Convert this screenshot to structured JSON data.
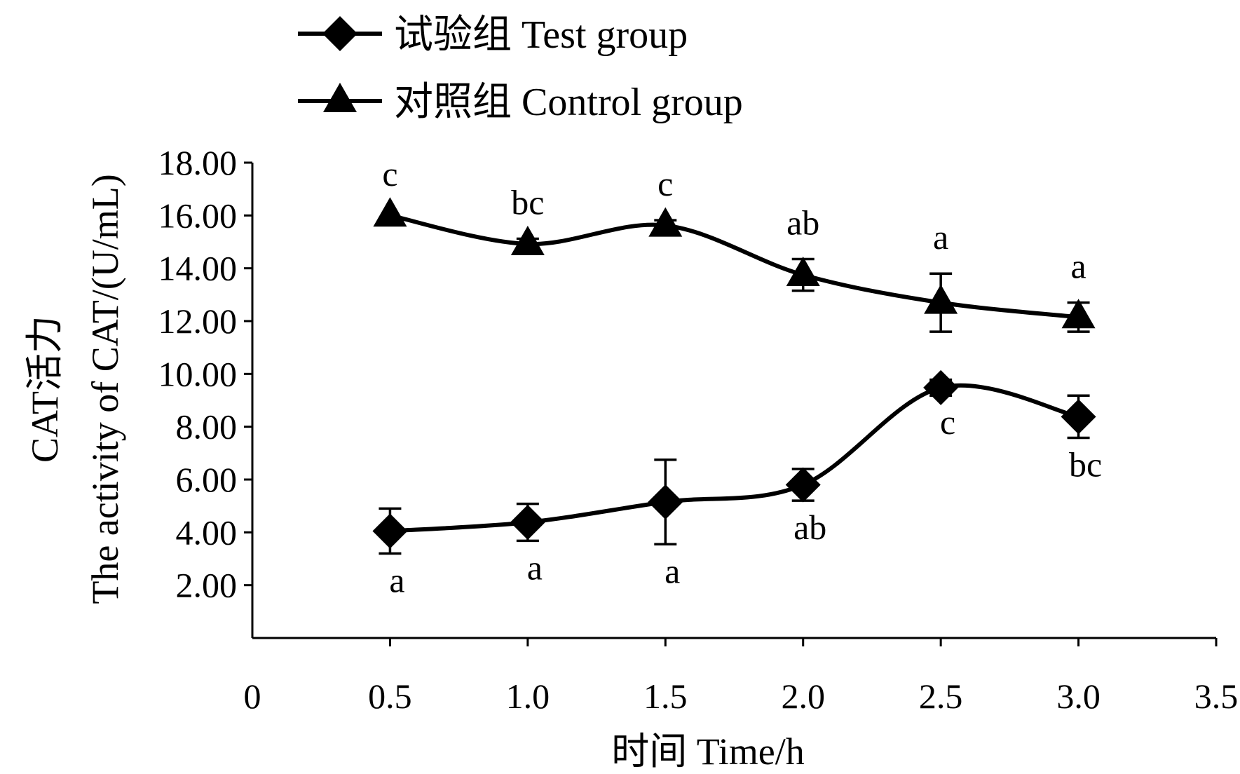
{
  "chart_data": {
    "type": "line",
    "xlabel": "时间  Time/h",
    "ylabel_line1": "CAT活力",
    "ylabel_line2": "The activity of CAT/(U/mL)",
    "xlim": [
      0,
      3.5
    ],
    "ylim": [
      0,
      18
    ],
    "x_ticks": [
      {
        "value": 0,
        "label": "0"
      },
      {
        "value": 0.5,
        "label": "0.5"
      },
      {
        "value": 1.0,
        "label": "1.0"
      },
      {
        "value": 1.5,
        "label": "1.5"
      },
      {
        "value": 2.0,
        "label": "2.0"
      },
      {
        "value": 2.5,
        "label": "2.5"
      },
      {
        "value": 3.0,
        "label": "3.0"
      },
      {
        "value": 3.5,
        "label": "3.5"
      }
    ],
    "y_ticks": [
      {
        "value": 2,
        "label": "2.00"
      },
      {
        "value": 4,
        "label": "4.00"
      },
      {
        "value": 6,
        "label": "6.00"
      },
      {
        "value": 8,
        "label": "8.00"
      },
      {
        "value": 10,
        "label": "10.00"
      },
      {
        "value": 12,
        "label": "12.00"
      },
      {
        "value": 14,
        "label": "14.00"
      },
      {
        "value": 16,
        "label": "16.00"
      },
      {
        "value": 18,
        "label": "18.00"
      }
    ],
    "grid": false,
    "legend_position": "top-left",
    "series": [
      {
        "name": "试验组 Test group",
        "marker": "diamond",
        "color": "#000000",
        "x": [
          0.5,
          1.0,
          1.5,
          2.0,
          2.5,
          3.0
        ],
        "y": [
          4.05,
          4.38,
          5.15,
          5.8,
          9.48,
          8.38
        ],
        "error": [
          0.85,
          0.7,
          1.6,
          0.6,
          0.3,
          0.8
        ],
        "labels": [
          "a",
          "a",
          "a",
          "ab",
          "c",
          "bc"
        ],
        "label_position": "below"
      },
      {
        "name": "对照组 Control group",
        "marker": "triangle",
        "color": "#000000",
        "x": [
          0.5,
          1.0,
          1.5,
          2.0,
          2.5,
          3.0
        ],
        "y": [
          16.0,
          14.92,
          15.62,
          13.75,
          12.7,
          12.15
        ],
        "error": [
          0.0,
          0.2,
          0.2,
          0.6,
          1.1,
          0.55
        ],
        "labels": [
          "c",
          "bc",
          "c",
          "ab",
          "a",
          "a"
        ],
        "label_position": "above"
      }
    ]
  }
}
